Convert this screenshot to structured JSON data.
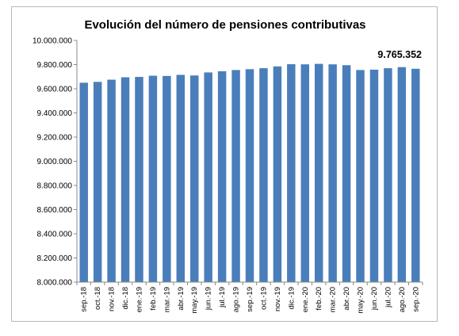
{
  "chart_data": {
    "type": "bar",
    "title": "Evolución del número de pensiones contributivas",
    "xlabel": "",
    "ylabel": "",
    "ylim": [
      8000000,
      10000000
    ],
    "yticks": [
      "8.000.000",
      "8.200.000",
      "8.400.000",
      "8.600.000",
      "8.800.000",
      "9.000.000",
      "9.200.000",
      "9.400.000",
      "9.600.000",
      "9.800.000",
      "10.000.000"
    ],
    "ytick_values": [
      8000000,
      8200000,
      8400000,
      8600000,
      8800000,
      9000000,
      9200000,
      9400000,
      9600000,
      9800000,
      10000000
    ],
    "categories": [
      "sep.-18",
      "oct.-18",
      "nov.-18",
      "dic.-18",
      "ene.-19",
      "feb.-19",
      "mar.-19",
      "abr.-19",
      "may.-19",
      "jun.-19",
      "jul.-19",
      "ago.-19",
      "sep.-19",
      "oct.-19",
      "nov.-19",
      "dic.-19",
      "ene.-20",
      "feb.-20",
      "mar.-20",
      "abr.-20",
      "may.-20",
      "jun.-20",
      "jul.-20",
      "ago.-20",
      "sep.-20"
    ],
    "values": [
      9650000,
      9657000,
      9675000,
      9695000,
      9698000,
      9708000,
      9706000,
      9715000,
      9710000,
      9735000,
      9745000,
      9755000,
      9762000,
      9770000,
      9785000,
      9803000,
      9802000,
      9806000,
      9802000,
      9795000,
      9755000,
      9758000,
      9770000,
      9779000,
      9765352
    ],
    "bar_color": "#4a7ebb",
    "annotation": "9.765.352",
    "grid": false,
    "legend": "none"
  }
}
